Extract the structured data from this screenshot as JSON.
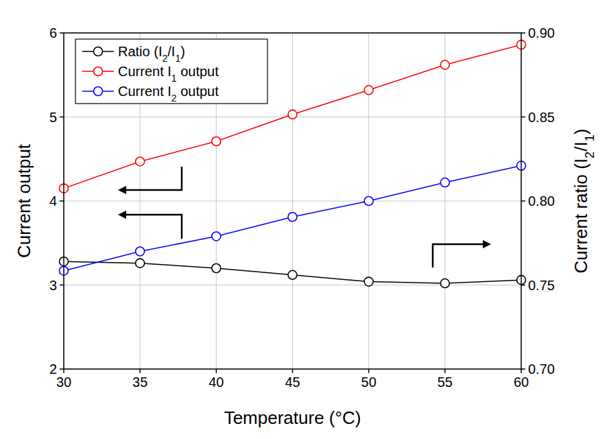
{
  "chart_data": {
    "type": "line",
    "x_label": "Temperature (°C)",
    "y_label": "Current output",
    "y2_label": "Current ratio (I2/I1)",
    "x": [
      30,
      35,
      40,
      45,
      50,
      55,
      60
    ],
    "xlim": [
      30,
      60
    ],
    "xticks": [
      30,
      35,
      40,
      45,
      50,
      55,
      60
    ],
    "ylim": [
      2,
      6
    ],
    "yticks": [
      2,
      3,
      4,
      5,
      6
    ],
    "y2lim": [
      0.7,
      0.9
    ],
    "y2ticks": [
      {
        "value": 0.7,
        "label": "0.70"
      },
      0.75,
      {
        "value": 0.8,
        "label": "0.80"
      },
      0.85,
      {
        "value": 0.9,
        "label": "0.90"
      }
    ],
    "grid": true,
    "legend": "upper left",
    "series": [
      {
        "name": "Ratio (I2/I1)",
        "color": "#000000",
        "marker": "circle",
        "line_style": "solid",
        "axis": "y2",
        "values": [
          0.764,
          0.763,
          0.76,
          0.756,
          0.752,
          0.751,
          0.753
        ]
      },
      {
        "name": "Current I1 output",
        "color": "#ff0000",
        "marker": "circle",
        "line_style": "solid",
        "values": [
          4.15,
          4.47,
          4.71,
          5.03,
          5.32,
          5.62,
          5.86
        ]
      },
      {
        "name": "Current I2 output",
        "color": "#0000ff",
        "marker": "circle",
        "line_style": "solid",
        "values": [
          3.17,
          3.4,
          3.58,
          3.81,
          4.0,
          4.22,
          4.42
        ]
      }
    ]
  }
}
